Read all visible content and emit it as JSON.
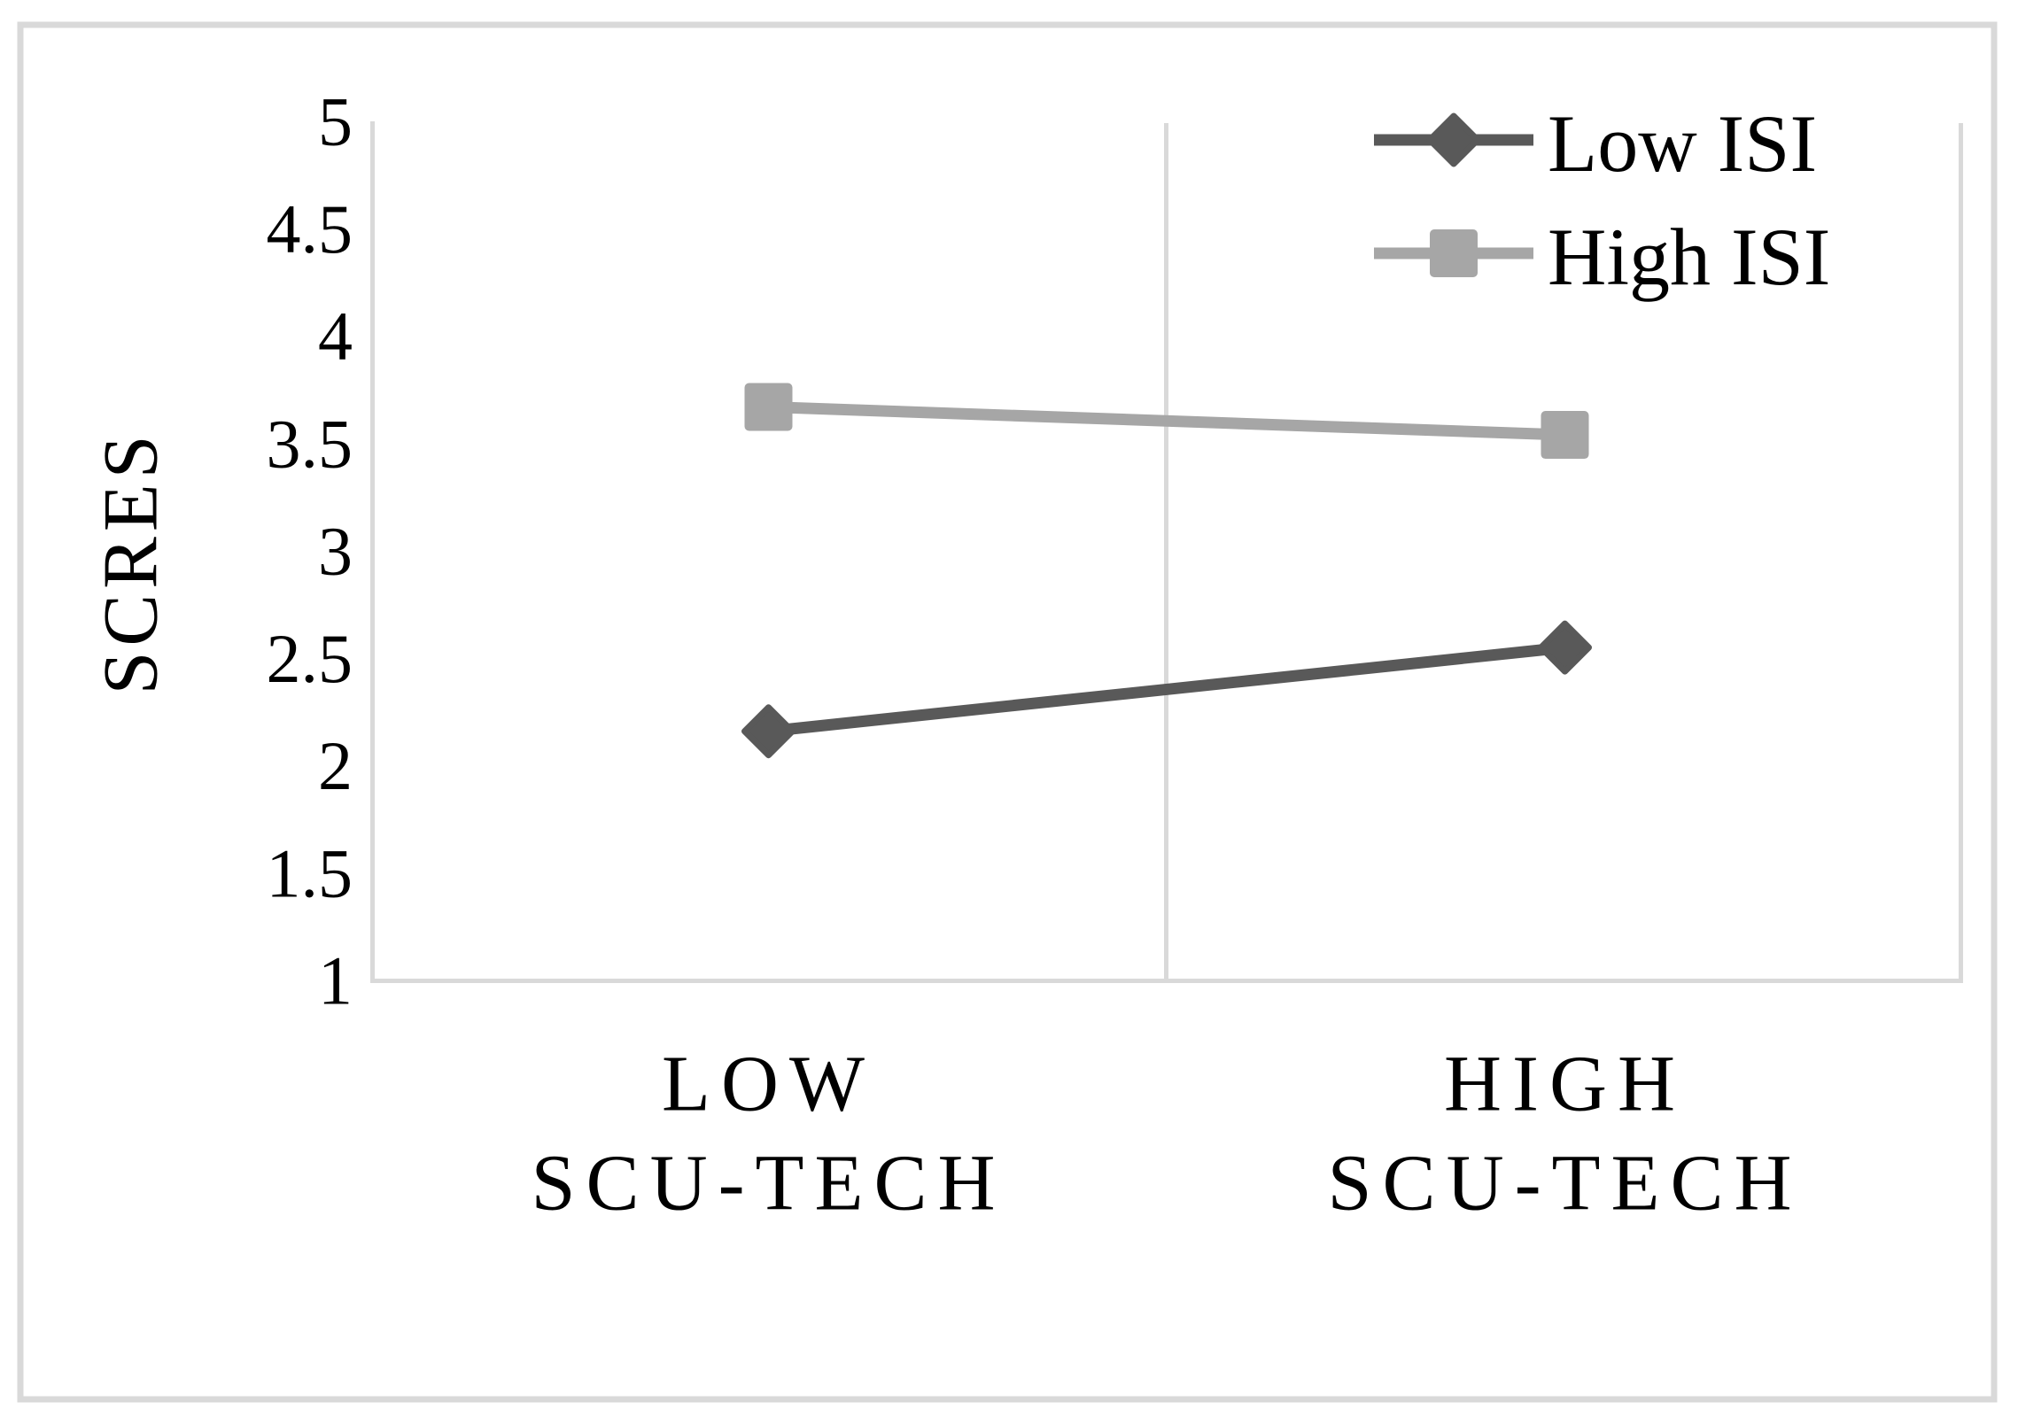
{
  "chart_data": {
    "type": "line",
    "title": "",
    "categories": [
      "LOW SCU-TECH",
      "HIGH SCU-TECH"
    ],
    "categories_multiline": [
      [
        "LOW",
        "SCU-TECH"
      ],
      [
        "HIGH",
        "SCU-TECH"
      ]
    ],
    "series": [
      {
        "name": "Low ISI",
        "marker": "diamond",
        "color": "#595959",
        "values": [
          2.16,
          2.55
        ]
      },
      {
        "name": "High ISI",
        "marker": "square",
        "color": "#a6a6a6",
        "values": [
          3.67,
          3.54
        ]
      }
    ],
    "xlabel": "",
    "ylabel": "SCRES",
    "ylim": [
      1,
      5
    ],
    "y_tick_step": 0.5,
    "y_ticks": [
      5,
      4.5,
      4,
      3.5,
      3,
      2.5,
      2,
      1.5,
      1
    ],
    "legend_position": "top-right",
    "grid": "vertical-category-boundaries",
    "colors": {
      "axis": "#d9d9d9",
      "figure_border": "#d9d9d9",
      "text": "#000000",
      "background": "#ffffff"
    }
  }
}
